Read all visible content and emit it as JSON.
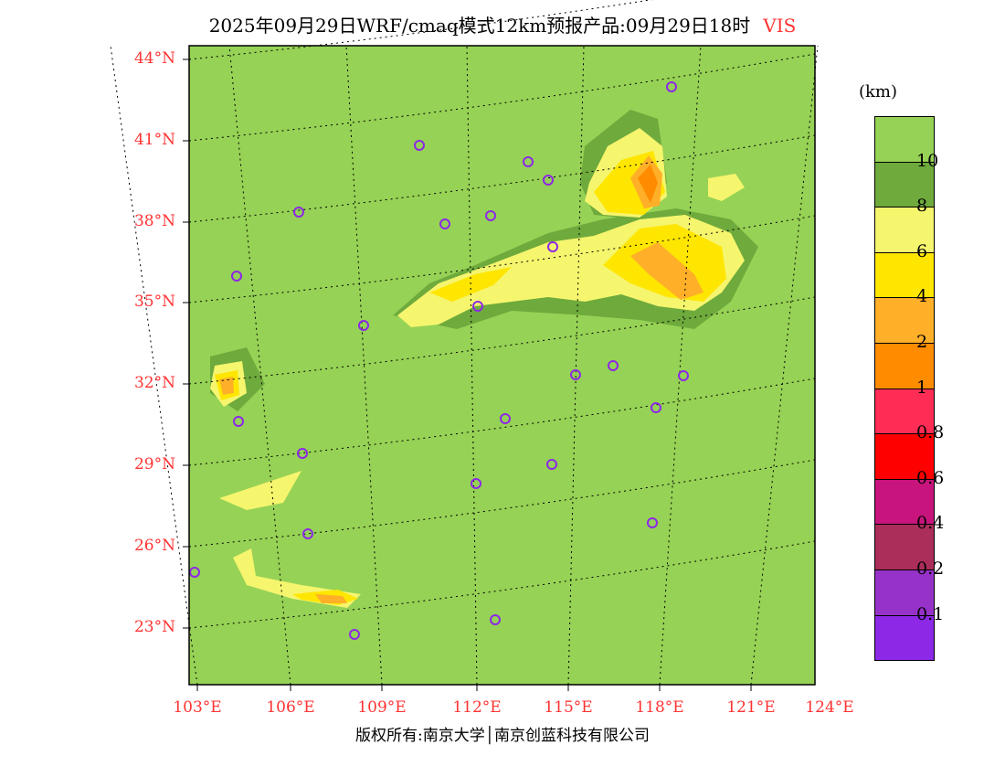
{
  "title": {
    "main": "2025年09月29日WRF/cmaq模式12km预报产品:09月29日18时",
    "variable": "VIS"
  },
  "lat_labels": [
    "44°N",
    "41°N",
    "38°N",
    "35°N",
    "32°N",
    "29°N",
    "26°N",
    "23°N"
  ],
  "lon_labels": [
    "103°E",
    "106°E",
    "109°E",
    "112°E",
    "115°E",
    "118°E",
    "121°E",
    "124°E"
  ],
  "legend": {
    "unit": "(km)",
    "colors": [
      "#96d255",
      "#6eaa3c",
      "#f5f56e",
      "#ffe600",
      "#ffaf28",
      "#ff8c00",
      "#ff2d55",
      "#ff0000",
      "#c8147d",
      "#aa2d5a",
      "#9632c8",
      "#8c28e6"
    ],
    "labels": [
      "10",
      "8",
      "6",
      "4",
      "2",
      "1",
      "0.8",
      "0.6",
      "0.4",
      "0.2",
      "0.1"
    ]
  },
  "footer": "版权所有:南京大学│南京创蓝科技有限公司"
}
